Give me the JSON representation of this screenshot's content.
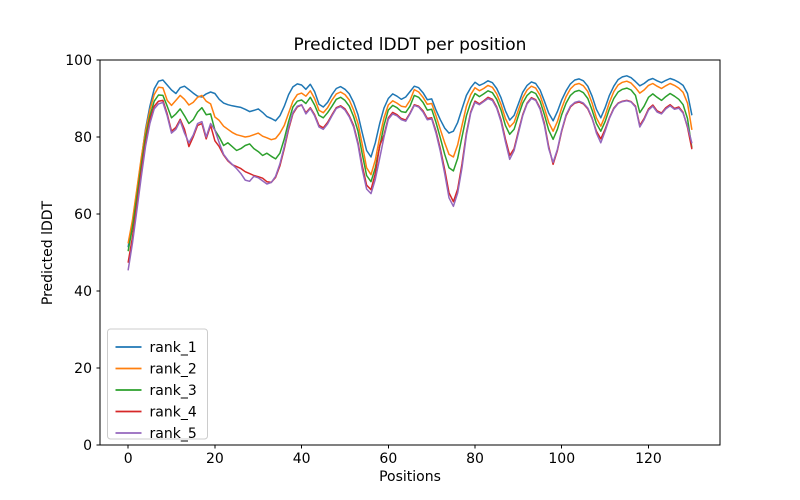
{
  "chart_data": {
    "type": "line",
    "title": "Predicted lDDT per position",
    "xlabel": "Positions",
    "ylabel": "Predicted lDDT",
    "xlim": [
      -6.5,
      136.5
    ],
    "ylim": [
      0,
      100
    ],
    "x_ticks": [
      0,
      20,
      40,
      60,
      80,
      100,
      120
    ],
    "y_ticks": [
      0,
      20,
      40,
      60,
      80,
      100
    ],
    "x_start": 0,
    "x_step": 1,
    "grid": false,
    "legend_position": "lower left",
    "series": [
      {
        "name": "rank_1",
        "color": "#1f77b4",
        "values": [
          51.5,
          58,
          66,
          74,
          82,
          88,
          92.5,
          94.5,
          94.8,
          93.5,
          92.2,
          91.3,
          92.8,
          93.2,
          92.3,
          91.4,
          90.6,
          90.4,
          91.2,
          91.7,
          91.3,
          89.8,
          88.8,
          88.4,
          88.1,
          87.9,
          87.7,
          87.2,
          86.6,
          86.9,
          87.3,
          86.4,
          85.3,
          84.8,
          84.2,
          85.5,
          88,
          91,
          93,
          93.8,
          93.5,
          92.4,
          93.7,
          91.8,
          88.5,
          87.8,
          89,
          91,
          92.6,
          93.1,
          92.4,
          91.2,
          89,
          85.8,
          81,
          76.5,
          74.8,
          78.5,
          83.5,
          87.5,
          90,
          91.2,
          90.6,
          89.8,
          90.4,
          91.8,
          93.2,
          92.8,
          91.5,
          89.7,
          89.9,
          87,
          84.5,
          82.3,
          81,
          81.5,
          83.8,
          87.3,
          90.8,
          92.8,
          94.2,
          93.4,
          93.9,
          94.6,
          94.1,
          92.6,
          90.2,
          86.8,
          84.4,
          85.6,
          88.6,
          91.6,
          93.4,
          94.3,
          93.9,
          92.2,
          89.3,
          86.2,
          84.2,
          86.6,
          89.6,
          92,
          93.8,
          94.8,
          95.1,
          94.6,
          93.2,
          90.6,
          87.2,
          85,
          87.6,
          90.8,
          93.2,
          94.9,
          95.6,
          95.9,
          95.4,
          94.4,
          93.3,
          93.9,
          94.8,
          95.2,
          94.6,
          94.1,
          94.7,
          95.2,
          94.8,
          94.2,
          93.4,
          91.3,
          85.8
        ]
      },
      {
        "name": "rank_2",
        "color": "#ff7f0e",
        "values": [
          52.5,
          58.5,
          66.5,
          74.5,
          81.5,
          87,
          91,
          92.9,
          92.8,
          89.5,
          88.2,
          89.5,
          90.8,
          89.8,
          88.3,
          89,
          90.3,
          90.8,
          89.3,
          88.6,
          85.2,
          84.3,
          82.8,
          82,
          81.2,
          80.6,
          80.3,
          80,
          80.2,
          80.6,
          81,
          80.2,
          79.8,
          79.3,
          79.6,
          81,
          83,
          86.2,
          89.3,
          91,
          91.4,
          90.6,
          92,
          90,
          86.9,
          86.3,
          87.6,
          89.6,
          91.2,
          91.7,
          91,
          89.6,
          87,
          83.5,
          78,
          72,
          70.2,
          74,
          80,
          85,
          88.3,
          89.4,
          88.8,
          88,
          87.8,
          89.5,
          92.3,
          91.7,
          90.3,
          88.5,
          88.7,
          85.5,
          82,
          78.5,
          75.5,
          74.8,
          78,
          83,
          88,
          91,
          92.8,
          92,
          92.6,
          93.4,
          92.9,
          91.2,
          88.5,
          84.8,
          82.6,
          83.8,
          87,
          90.2,
          92.2,
          93.2,
          92.7,
          90.8,
          87.5,
          83.8,
          81.5,
          84,
          87.5,
          90.5,
          92.5,
          93.6,
          93.9,
          93.3,
          91.8,
          88.8,
          85,
          82.8,
          85.5,
          89,
          91.8,
          93.5,
          94.2,
          94.5,
          94,
          92.8,
          91.4,
          92.2,
          93.4,
          93.9,
          93.2,
          92.6,
          93.3,
          93.9,
          93.4,
          92.7,
          91.6,
          88.8,
          82
        ]
      },
      {
        "name": "rank_3",
        "color": "#2ca02c",
        "values": [
          50.5,
          56.5,
          64.5,
          72.5,
          80,
          85.5,
          89.3,
          90.9,
          90.8,
          88,
          85,
          86,
          87.3,
          85.5,
          83.5,
          84.5,
          86.5,
          87.6,
          85.8,
          86,
          81.8,
          80,
          77.8,
          78.5,
          77.5,
          76.5,
          77,
          77.8,
          78.2,
          77,
          76.2,
          75.2,
          75.8,
          75,
          74.3,
          75.8,
          79.5,
          84,
          87.8,
          89.3,
          89.6,
          88.7,
          90.3,
          88.3,
          85.6,
          85,
          86.3,
          88,
          89.8,
          90.3,
          89.5,
          88,
          85.3,
          81.5,
          75.5,
          70,
          68.4,
          72,
          77.5,
          83,
          87,
          88.2,
          87.6,
          86.6,
          86.4,
          88,
          90.8,
          90.3,
          89,
          87,
          87.2,
          83.8,
          79.8,
          75.5,
          72,
          71.2,
          74.5,
          80,
          85.5,
          89,
          91.3,
          90.5,
          91.2,
          92,
          91.5,
          89.8,
          87,
          83,
          80.7,
          82,
          85.5,
          88.8,
          90.8,
          91.8,
          91.3,
          89.3,
          85.8,
          81.8,
          79.4,
          82,
          85.8,
          88.8,
          90.8,
          91.8,
          92.1,
          91.5,
          90,
          87,
          83.5,
          81.5,
          84,
          87.3,
          90,
          91.7,
          92.4,
          92.7,
          92.2,
          90.8,
          86.3,
          88,
          90.3,
          91.2,
          90.3,
          89.5,
          90.5,
          91.3,
          90.6,
          89.8,
          88.4,
          84.8,
          77.3
        ]
      },
      {
        "name": "rank_4",
        "color": "#d62728",
        "values": [
          47.5,
          54,
          62.5,
          71,
          78.5,
          84.5,
          88,
          89.3,
          89.5,
          86,
          81.5,
          82.5,
          84.6,
          82,
          77.5,
          80,
          83,
          83.5,
          79.5,
          83,
          79,
          77.5,
          75.3,
          73.8,
          72.8,
          72.3,
          71.8,
          71,
          70.5,
          70,
          69.7,
          69.3,
          68.4,
          68.2,
          69.5,
          72.5,
          77,
          82,
          86,
          87.8,
          88.3,
          86.3,
          87.6,
          85.8,
          83,
          82.4,
          83.8,
          85.8,
          87.6,
          88.1,
          87.3,
          85.5,
          83,
          78.5,
          72.5,
          67.5,
          66.3,
          70.5,
          77.8,
          80.5,
          85,
          86.4,
          85.8,
          84.8,
          84.4,
          86.2,
          88.4,
          88,
          86.8,
          84.8,
          85,
          81.5,
          77,
          71.5,
          65.5,
          63.2,
          66.5,
          73,
          81,
          86.5,
          89.3,
          88.6,
          89.4,
          90.3,
          89.8,
          87.8,
          84.5,
          79.5,
          75.2,
          77,
          81.5,
          85.8,
          88.8,
          90.2,
          89.7,
          87.5,
          83.5,
          77.5,
          72.9,
          76.5,
          81.5,
          85.5,
          87.8,
          88.8,
          89.1,
          88.6,
          87.3,
          84.8,
          81.5,
          79.5,
          82,
          85,
          87.5,
          88.8,
          89.3,
          89.5,
          89.2,
          88,
          83,
          84.8,
          87.3,
          88.3,
          86.8,
          86.2,
          87.6,
          88.4,
          87.4,
          87.8,
          86.4,
          82.5,
          77
        ]
      },
      {
        "name": "rank_5",
        "color": "#9467bd",
        "values": [
          45.5,
          52.5,
          61,
          69.5,
          77.5,
          83.5,
          87.3,
          88.6,
          89,
          85.5,
          81,
          82,
          84.2,
          81,
          78.5,
          80.5,
          83.5,
          84,
          80,
          83.5,
          81.8,
          78.5,
          75.5,
          74,
          72.9,
          71.8,
          70.5,
          68.8,
          68.5,
          69.8,
          69.4,
          68.6,
          67.8,
          68.2,
          69.8,
          73,
          77.5,
          82.5,
          86.3,
          88,
          88.4,
          86,
          87.4,
          85.5,
          82.6,
          82,
          83.4,
          85.5,
          87.4,
          87.9,
          87,
          85.2,
          82.6,
          78,
          71.5,
          66.5,
          65.3,
          69,
          74.5,
          80,
          84.6,
          86,
          85.5,
          84.5,
          84.1,
          86,
          88.2,
          87.8,
          86.5,
          84.5,
          84.7,
          81,
          76.3,
          70.5,
          64.2,
          62,
          65.5,
          72,
          80.5,
          86.2,
          89,
          88.4,
          89.2,
          90,
          89.5,
          87.5,
          84,
          78.8,
          74.2,
          76.5,
          81,
          85.5,
          88.6,
          90,
          89.5,
          87.2,
          83,
          77,
          73.4,
          76.8,
          81.8,
          85.8,
          88,
          89,
          89.3,
          88.8,
          87.5,
          85,
          81,
          78.5,
          81.5,
          84.8,
          87.3,
          88.7,
          89.2,
          89.4,
          89.1,
          87.8,
          82.6,
          84.5,
          87,
          88,
          86.5,
          86,
          87.3,
          88.1,
          87.2,
          87.5,
          86.2,
          82.8,
          78.5
        ]
      }
    ]
  }
}
